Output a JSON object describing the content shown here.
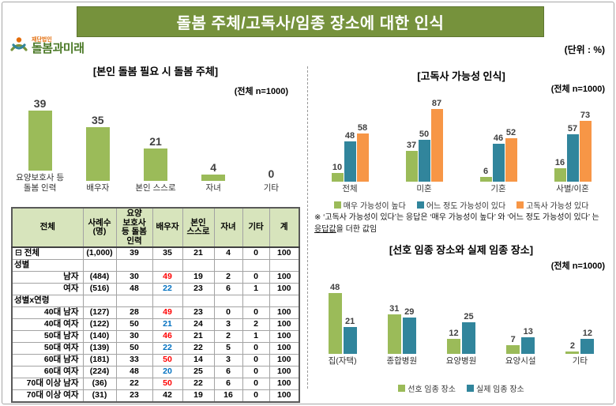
{
  "page": {
    "title": "돌봄 주체/고독사/임종 장소에 대한 인식",
    "unit_label": "(단위 : %)",
    "logo": {
      "org_type": "재단법인",
      "name": "돌봄과미래"
    }
  },
  "colors": {
    "banner_green": "#76923C",
    "bar_green": "#9BBB59",
    "bar_teal": "#31859C",
    "bar_orange": "#F79646",
    "value_red": "#FF0000",
    "value_blue": "#0070C0",
    "table_header_bg": "#D7E4BC"
  },
  "left": {
    "chart_title": "[본인 돌봄 필요 시 돌봄 주체]",
    "n_label": "(전체 n=1000)",
    "table": {
      "headers": [
        "전체",
        "사례수\n(명)",
        "요양\n보호사\n등 돌봄\n인력",
        "배우자",
        "본인\n스스로",
        "자녀",
        "기타",
        "계"
      ],
      "rows": [
        {
          "type": "data",
          "label": "⊟ 전체",
          "align": "left",
          "values": [
            "(1,000)",
            "39",
            "35",
            "21",
            "4",
            "0",
            "100"
          ]
        },
        {
          "type": "section",
          "label": "성별"
        },
        {
          "type": "data",
          "label": "남자",
          "values": [
            "(484)",
            "30",
            "49",
            "19",
            "2",
            "0",
            "100"
          ],
          "colors": {
            "2": "red"
          }
        },
        {
          "type": "data",
          "label": "여자",
          "values": [
            "(516)",
            "48",
            "22",
            "23",
            "6",
            "1",
            "100"
          ],
          "colors": {
            "2": "blue"
          }
        },
        {
          "type": "section",
          "label": "성별x연령"
        },
        {
          "type": "data",
          "label": "40대 남자",
          "values": [
            "(127)",
            "28",
            "49",
            "23",
            "0",
            "0",
            "100"
          ],
          "colors": {
            "2": "red"
          }
        },
        {
          "type": "data",
          "label": "40대 여자",
          "values": [
            "(122)",
            "50",
            "21",
            "24",
            "3",
            "2",
            "100"
          ],
          "colors": {
            "2": "blue"
          }
        },
        {
          "type": "data",
          "label": "50대 남자",
          "values": [
            "(140)",
            "30",
            "46",
            "21",
            "2",
            "1",
            "100"
          ],
          "colors": {
            "2": "red"
          }
        },
        {
          "type": "data",
          "label": "50대 여자",
          "values": [
            "(139)",
            "50",
            "22",
            "22",
            "5",
            "0",
            "100"
          ],
          "colors": {
            "2": "blue"
          }
        },
        {
          "type": "data",
          "label": "60대 남자",
          "values": [
            "(181)",
            "33",
            "50",
            "14",
            "3",
            "0",
            "100"
          ],
          "colors": {
            "2": "red"
          }
        },
        {
          "type": "data",
          "label": "60대 여자",
          "values": [
            "(224)",
            "48",
            "20",
            "25",
            "6",
            "0",
            "100"
          ],
          "colors": {
            "2": "blue"
          }
        },
        {
          "type": "data",
          "label": "70대 이상 남자",
          "values": [
            "(36)",
            "22",
            "50",
            "22",
            "6",
            "0",
            "100"
          ],
          "colors": {
            "2": "red"
          }
        },
        {
          "type": "data",
          "label": "70대 이상 여자",
          "values": [
            "(31)",
            "23",
            "42",
            "19",
            "16",
            "0",
            "100"
          ]
        }
      ]
    }
  },
  "right_top": {
    "chart_title": "[고독사 가능성 인식]",
    "n_label": "(전체 n=1000)",
    "note_pre": "※ ‘고독사 가능성이 있다’는 응답은 ‘매우 가능성이 높다’ 와 ‘어느 정도 가능성이 있다’ 는 ",
    "note_mid": "응답값",
    "note_post": "을 더한 값임"
  },
  "right_bottom": {
    "chart_title": "[선호 임종 장소와 실제 임종 장소]",
    "n_label": "(전체 n=1000)"
  },
  "chart_data": [
    {
      "id": "care-provider",
      "type": "bar",
      "title": "[본인 돌봄 필요 시 돌봄 주체]",
      "n": 1000,
      "categories": [
        "요양보호사 등\n돌봄 인력",
        "배우자",
        "본인 스스로",
        "자녀",
        "기타"
      ],
      "values": [
        39,
        35,
        21,
        4,
        0
      ],
      "bar_color": "#9BBB59",
      "ylim": [
        0,
        45
      ],
      "ylabel": "%"
    },
    {
      "id": "lonely-death-perception",
      "type": "bar",
      "title": "[고독사 가능성 인식]",
      "n": 1000,
      "categories": [
        "전체",
        "미혼",
        "기혼",
        "사별/이혼"
      ],
      "series": [
        {
          "name": "매우 가능성이 높다",
          "color": "#9BBB59",
          "values": [
            10,
            37,
            6,
            16
          ]
        },
        {
          "name": "어느 정도 가능성이 있다",
          "color": "#31859C",
          "values": [
            48,
            50,
            46,
            57
          ]
        },
        {
          "name": "고독사 가능성 있다",
          "color": "#F79646",
          "values": [
            58,
            87,
            52,
            73
          ]
        }
      ],
      "ylim": [
        0,
        95
      ],
      "ylabel": "%",
      "legend_position": "bottom"
    },
    {
      "id": "death-place",
      "type": "bar",
      "title": "[선호 임종 장소와 실제 임종 장소]",
      "n": 1000,
      "categories": [
        "집(자택)",
        "종합병원",
        "요양병원",
        "요양시설",
        "기타"
      ],
      "series": [
        {
          "name": "선호 임종 장소",
          "color": "#9BBB59",
          "values": [
            48,
            31,
            12,
            7,
            2
          ]
        },
        {
          "name": "실제 임종 장소",
          "color": "#31859C",
          "values": [
            21,
            29,
            25,
            13,
            12
          ]
        }
      ],
      "ylim": [
        0,
        55
      ],
      "ylabel": "%",
      "legend_position": "bottom"
    }
  ]
}
